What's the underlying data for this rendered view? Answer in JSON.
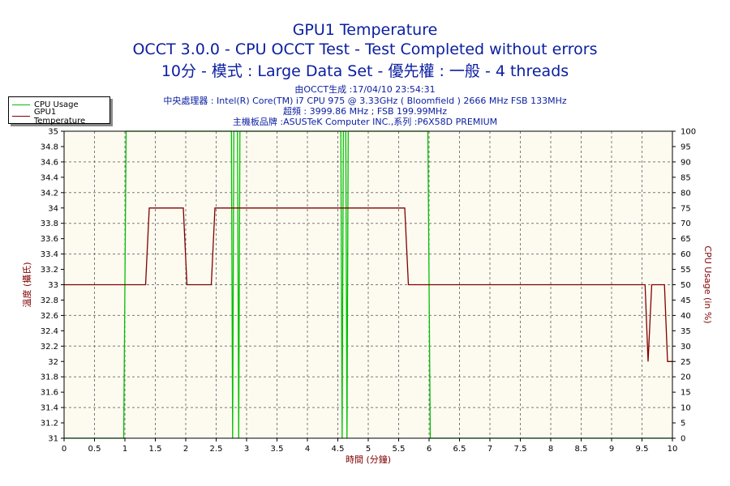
{
  "chart_data": {
    "type": "line",
    "title": "GPU1 Temperature",
    "subtitle_lines": [
      "OCCT 3.0.0 - CPU OCCT Test - Test Completed without errors",
      "10分 - 模式 : Large Data Set - 優先權 : 一般 - 4 threads"
    ],
    "info_lines": [
      "由OCCT生成 :17/04/10 23:54:31",
      "中央處理器 : Intel(R) Core(TM) i7 CPU 975 @ 3.33GHz ( Bloomfield ) 2666 MHz FSB 133MHz",
      "超頻 : 3999.86 MHz ; FSB 199.99MHz",
      "主機板品牌 :ASUSTeK Computer INC.,系列 :P6X58D PREMIUM"
    ],
    "xlabel": "時間 (分鐘)",
    "ylabel": "溫度 (攝氏)",
    "y2label": "CPU Usage (in %)",
    "xlim": [
      0,
      10
    ],
    "ylim": [
      31,
      35
    ],
    "y2lim": [
      0,
      100
    ],
    "xticks": [
      "0",
      "0.5",
      "1",
      "1.5",
      "2",
      "2.5",
      "3",
      "3.5",
      "4",
      "4.5",
      "5",
      "5.5",
      "6",
      "6.5",
      "7",
      "7.5",
      "8",
      "8.5",
      "9",
      "9.5",
      "10"
    ],
    "yticks": [
      "31",
      "31.2",
      "31.4",
      "31.6",
      "31.8",
      "32",
      "32.2",
      "32.4",
      "32.6",
      "32.8",
      "33",
      "33.2",
      "33.4",
      "33.6",
      "33.8",
      "34",
      "34.2",
      "34.4",
      "34.6",
      "34.8",
      "35"
    ],
    "y2ticks": [
      "0",
      "5",
      "10",
      "15",
      "20",
      "25",
      "30",
      "35",
      "40",
      "45",
      "50",
      "55",
      "60",
      "65",
      "70",
      "75",
      "80",
      "85",
      "90",
      "95",
      "100"
    ],
    "grid": true,
    "legend_position": "top-left",
    "series": [
      {
        "name": "CPU Usage",
        "axis": "right",
        "color": "#00c000",
        "points": [
          [
            0,
            0
          ],
          [
            0.98,
            0
          ],
          [
            1.02,
            100
          ],
          [
            2.75,
            100
          ],
          [
            2.77,
            0
          ],
          [
            2.79,
            100
          ],
          [
            2.85,
            100
          ],
          [
            2.87,
            0
          ],
          [
            2.89,
            100
          ],
          [
            4.55,
            100
          ],
          [
            4.57,
            0
          ],
          [
            4.59,
            100
          ],
          [
            4.63,
            100
          ],
          [
            4.65,
            0
          ],
          [
            4.67,
            100
          ],
          [
            5.98,
            100
          ],
          [
            6.02,
            0
          ],
          [
            10,
            0
          ]
        ]
      },
      {
        "name": "GPU1 Temperature",
        "axis": "left",
        "color": "#800000",
        "points": [
          [
            0,
            33
          ],
          [
            1.34,
            33
          ],
          [
            1.4,
            34
          ],
          [
            1.96,
            34
          ],
          [
            2.02,
            33
          ],
          [
            2.42,
            33
          ],
          [
            2.48,
            34
          ],
          [
            5.6,
            34
          ],
          [
            5.66,
            33
          ],
          [
            9.55,
            33
          ],
          [
            9.6,
            32
          ],
          [
            9.66,
            33
          ],
          [
            9.87,
            33
          ],
          [
            9.92,
            32
          ],
          [
            10,
            32
          ]
        ]
      }
    ]
  }
}
